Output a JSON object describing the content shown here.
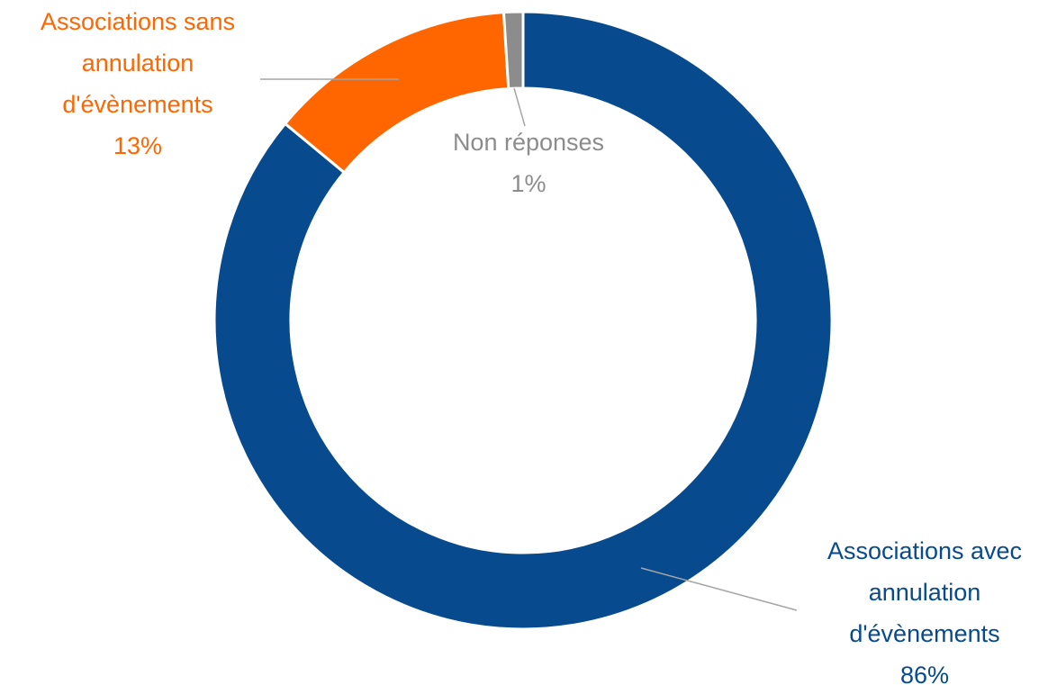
{
  "chart_data": {
    "type": "donut",
    "categories": [
      "Associations avec annulation d'évènements",
      "Associations sans annulation d'évènements",
      "Non réponses"
    ],
    "values": [
      86,
      13,
      1
    ],
    "value_labels": [
      "86%",
      "13%",
      "1%"
    ],
    "colors": [
      "#074a8e",
      "#ff6600",
      "#8c8c8c"
    ]
  }
}
